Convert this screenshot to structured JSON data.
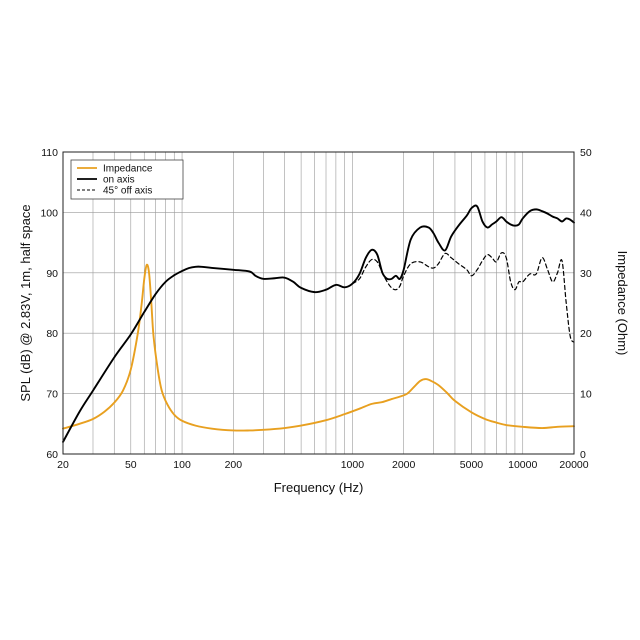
{
  "chart_data": {
    "type": "line",
    "xlabel": "Frequency (Hz)",
    "ylabel_left": "SPL (dB) @ 2.83V, 1m, half space",
    "ylabel_right": "Impedance (Ohm)",
    "x_scale": "log",
    "xlim": [
      20,
      20000
    ],
    "ylim_left": [
      60,
      110
    ],
    "ylim_right": [
      0,
      50
    ],
    "x_ticks": [
      20,
      50,
      100,
      200,
      1000,
      2000,
      5000,
      10000,
      20000
    ],
    "x_tick_labels": [
      "20",
      "50",
      "100",
      "200",
      "1000",
      "2000",
      "5000",
      "10000",
      "20000"
    ],
    "y_ticks_left": [
      60,
      70,
      80,
      90,
      100,
      110
    ],
    "y_ticks_right": [
      0,
      10,
      20,
      30,
      40,
      50
    ],
    "grid": true,
    "legend_position": "top-left",
    "series": [
      {
        "name": "Impedance",
        "axis": "right",
        "color": "#e8a020",
        "dash": "solid",
        "x": [
          20,
          25,
          30,
          35,
          40,
          45,
          50,
          55,
          58,
          60,
          62,
          64,
          66,
          68,
          72,
          76,
          82,
          90,
          100,
          120,
          150,
          200,
          250,
          300,
          400,
          500,
          700,
          900,
          1100,
          1300,
          1500,
          1700,
          1900,
          2100,
          2300,
          2500,
          2700,
          2900,
          3200,
          3600,
          4000,
          5000,
          6000,
          7000,
          8000,
          10000,
          13000,
          16000,
          20000
        ],
        "values": [
          4.2,
          5.0,
          5.8,
          7.0,
          8.5,
          10.5,
          14,
          20,
          25,
          29,
          31.3,
          30,
          25,
          19.5,
          14,
          10.5,
          8.2,
          6.5,
          5.5,
          4.7,
          4.2,
          3.9,
          3.9,
          4.0,
          4.3,
          4.7,
          5.6,
          6.6,
          7.5,
          8.3,
          8.6,
          9.1,
          9.5,
          10.0,
          11.1,
          12.1,
          12.4,
          12.1,
          11.4,
          10.1,
          8.8,
          6.9,
          5.8,
          5.2,
          4.8,
          4.5,
          4.3,
          4.5,
          4.6
        ]
      },
      {
        "name": "on axis",
        "axis": "left",
        "color": "#000000",
        "dash": "solid",
        "x": [
          20,
          25,
          30,
          40,
          50,
          60,
          70,
          80,
          90,
          100,
          110,
          120,
          130,
          150,
          200,
          250,
          270,
          300,
          350,
          400,
          450,
          500,
          600,
          700,
          800,
          900,
          1000,
          1100,
          1200,
          1300,
          1400,
          1500,
          1600,
          1700,
          1800,
          1900,
          2000,
          2200,
          2500,
          2800,
          3000,
          3200,
          3500,
          3800,
          4200,
          4700,
          5000,
          5400,
          5800,
          6200,
          6600,
          7000,
          7500,
          8000,
          8500,
          9000,
          9500,
          10000,
          11000,
          12000,
          13000,
          14000,
          15000,
          16000,
          17000,
          18000,
          19000,
          20000
        ],
        "values": [
          62,
          67,
          70.5,
          76,
          79.8,
          83.5,
          86.5,
          88.5,
          89.6,
          90.3,
          90.8,
          91.0,
          91.0,
          90.8,
          90.5,
          90.2,
          89.5,
          89.0,
          89.1,
          89.2,
          88.5,
          87.5,
          86.8,
          87.2,
          88.0,
          87.6,
          88.2,
          89.8,
          92.5,
          93.8,
          93.0,
          90.0,
          89.0,
          89.0,
          89.5,
          89.0,
          90.5,
          95.5,
          97.5,
          97.5,
          96.5,
          95.0,
          93.7,
          96.0,
          97.8,
          99.5,
          100.7,
          101.0,
          98.5,
          97.5,
          98.0,
          98.5,
          99.2,
          98.5,
          98.0,
          97.8,
          98.0,
          99.0,
          100.2,
          100.5,
          100.2,
          99.8,
          99.3,
          99.0,
          98.5,
          99.0,
          98.8,
          98.3
        ]
      },
      {
        "name": "45° off axis",
        "axis": "left",
        "color": "#000000",
        "dash": "dashed",
        "x": [
          1000,
          1100,
          1200,
          1300,
          1400,
          1500,
          1600,
          1700,
          1800,
          1900,
          2000,
          2200,
          2500,
          2800,
          3000,
          3200,
          3500,
          3800,
          4200,
          4700,
          5000,
          5400,
          5800,
          6200,
          6600,
          7000,
          7500,
          8000,
          8500,
          9000,
          9500,
          10000,
          11000,
          12000,
          13000,
          14000,
          15000,
          16000,
          17000,
          18000,
          19000,
          20000
        ],
        "values": [
          88.2,
          89.0,
          91.0,
          92.2,
          91.8,
          90.0,
          88.5,
          87.5,
          87.2,
          87.8,
          89.5,
          91.5,
          91.8,
          91.0,
          90.8,
          91.5,
          93.2,
          92.5,
          91.5,
          90.5,
          89.5,
          90.5,
          92.0,
          93.0,
          92.5,
          91.8,
          93.3,
          92.5,
          88.5,
          87.2,
          88.5,
          88.5,
          89.8,
          89.8,
          92.5,
          90.5,
          88.5,
          90.0,
          92.0,
          85.0,
          79.5,
          78.5
        ]
      }
    ]
  }
}
